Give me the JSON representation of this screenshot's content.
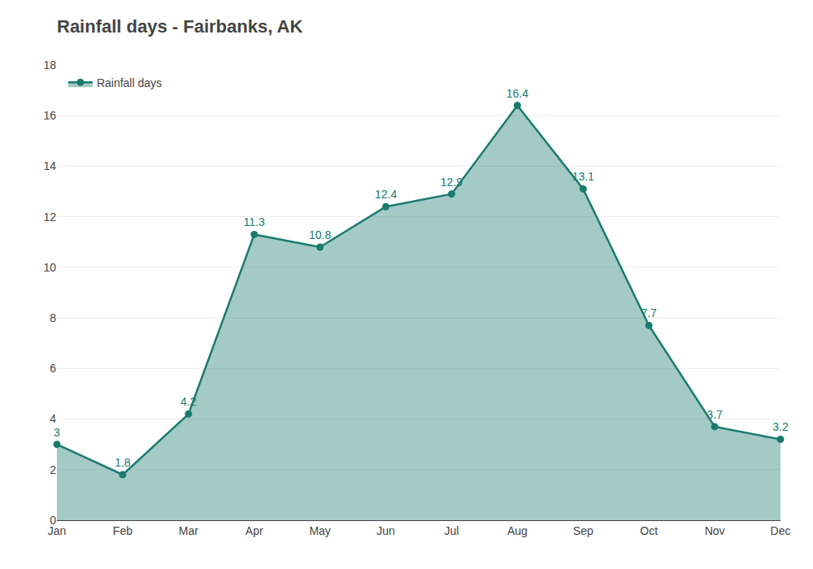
{
  "chart_data": {
    "type": "area",
    "title": "Rainfall days - Fairbanks, AK",
    "categories": [
      "Jan",
      "Feb",
      "Mar",
      "Apr",
      "May",
      "Jun",
      "Jul",
      "Aug",
      "Sep",
      "Oct",
      "Nov",
      "Dec"
    ],
    "series": [
      {
        "name": "Rainfall days",
        "color": "#1a7a6e",
        "values": [
          3.0,
          1.8,
          4.2,
          11.3,
          10.8,
          12.4,
          12.9,
          16.4,
          13.1,
          7.7,
          3.7,
          3.2
        ]
      }
    ],
    "ylim": [
      0,
      18
    ],
    "yticks": [
      0,
      2,
      4,
      6,
      8,
      10,
      12,
      14,
      16,
      18
    ],
    "grid": true,
    "legend": "upper left",
    "data_labels": true,
    "marker": "circle"
  }
}
